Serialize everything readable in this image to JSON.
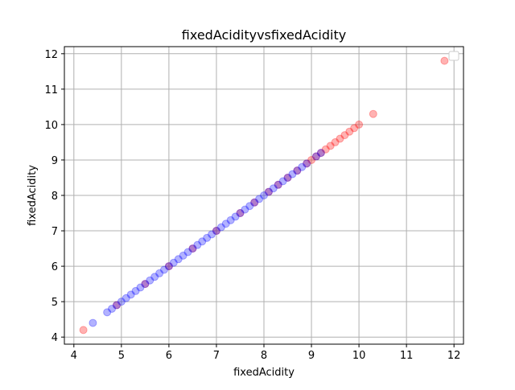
{
  "chart_data": {
    "type": "scatter",
    "title": "fixedAcidityvsfixedAcidity",
    "xlabel": "fixedAcidity",
    "ylabel": "fixedAcidity",
    "xlim": [
      3.8,
      12.2
    ],
    "ylim": [
      3.8,
      12.2
    ],
    "xticks": [
      "4",
      "5",
      "6",
      "7",
      "8",
      "9",
      "10",
      "11",
      "12"
    ],
    "yticks": [
      "4",
      "5",
      "6",
      "7",
      "8",
      "9",
      "10",
      "11",
      "12"
    ],
    "grid": true,
    "legend": "top-right",
    "colors": {
      "red_class": "#ff0000",
      "blue_class": "#0000ff"
    },
    "series": [
      {
        "color": "#ff0000",
        "opacity": 0.3,
        "x": [
          4.2,
          4.9,
          5.5,
          6.0,
          6.5,
          7.0,
          7.5,
          7.8,
          8.1,
          8.3,
          8.5,
          8.7,
          8.9,
          9.0,
          9.1,
          9.2,
          9.3,
          9.4,
          9.5,
          9.6,
          9.7,
          9.8,
          9.9,
          10.0,
          10.3,
          11.8
        ],
        "y": [
          4.2,
          4.9,
          5.5,
          6.0,
          6.5,
          7.0,
          7.5,
          7.8,
          8.1,
          8.3,
          8.5,
          8.7,
          8.9,
          9.0,
          9.1,
          9.2,
          9.3,
          9.4,
          9.5,
          9.6,
          9.7,
          9.8,
          9.9,
          10.0,
          10.3,
          11.8
        ]
      },
      {
        "color": "#0000ff",
        "opacity": 0.3,
        "x": [
          4.4,
          4.7,
          4.8,
          4.9,
          5.0,
          5.1,
          5.2,
          5.3,
          5.4,
          5.5,
          5.6,
          5.7,
          5.8,
          5.9,
          6.0,
          6.1,
          6.2,
          6.3,
          6.4,
          6.5,
          6.6,
          6.7,
          6.8,
          6.9,
          7.0,
          7.1,
          7.2,
          7.3,
          7.4,
          7.5,
          7.6,
          7.7,
          7.8,
          7.9,
          8.0,
          8.1,
          8.2,
          8.3,
          8.4,
          8.5,
          8.6,
          8.7,
          8.8,
          8.9,
          9.1,
          9.2
        ],
        "y": [
          4.4,
          4.7,
          4.8,
          4.9,
          5.0,
          5.1,
          5.2,
          5.3,
          5.4,
          5.5,
          5.6,
          5.7,
          5.8,
          5.9,
          6.0,
          6.1,
          6.2,
          6.3,
          6.4,
          6.5,
          6.6,
          6.7,
          6.8,
          6.9,
          7.0,
          7.1,
          7.2,
          7.3,
          7.4,
          7.5,
          7.6,
          7.7,
          7.8,
          7.9,
          8.0,
          8.1,
          8.2,
          8.3,
          8.4,
          8.5,
          8.6,
          8.7,
          8.8,
          8.9,
          9.1,
          9.2
        ]
      }
    ]
  }
}
